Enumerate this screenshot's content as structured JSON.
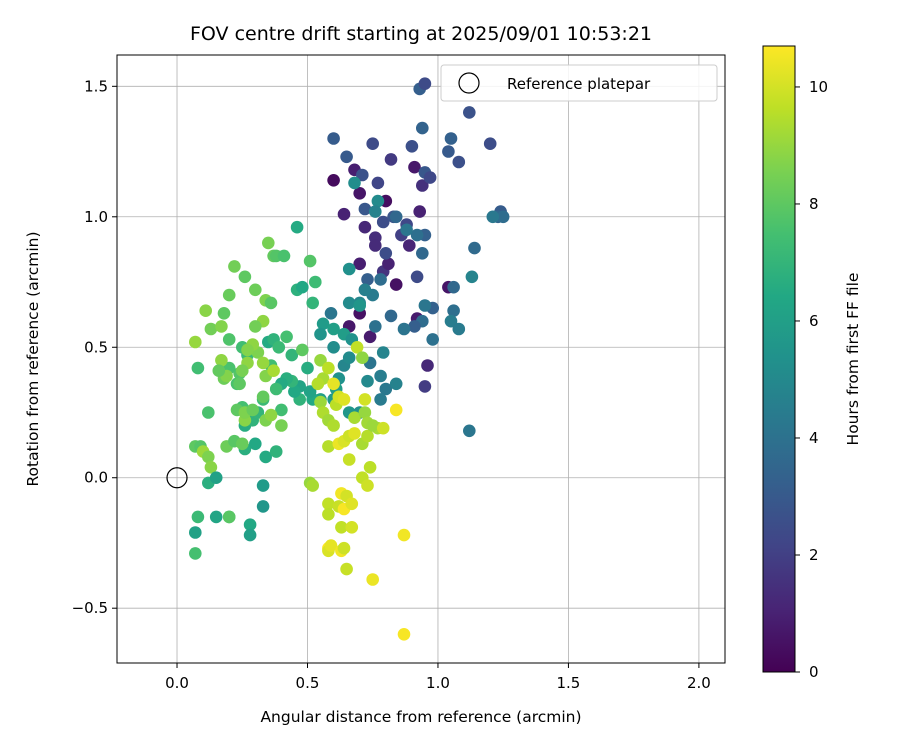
{
  "chart_data": {
    "type": "scatter",
    "title": "FOV centre drift starting at 2025/09/01 10:53:21",
    "xlabel": "Angular distance from reference (arcmin)",
    "ylabel": "Rotation from reference (arcmin)",
    "xlim": [
      -0.23,
      2.1
    ],
    "ylim": [
      -0.71,
      1.62
    ],
    "xticks": [
      0.0,
      0.5,
      1.0,
      1.5,
      2.0
    ],
    "xtick_labels": [
      "0.0",
      "0.5",
      "1.0",
      "1.5",
      "2.0"
    ],
    "yticks": [
      -0.5,
      0.0,
      0.5,
      1.0,
      1.5
    ],
    "ytick_labels": [
      "−0.5",
      "0.0",
      "0.5",
      "1.0",
      "1.5"
    ],
    "grid": true,
    "legend": {
      "position": "top-right",
      "label": "Reference platepar"
    },
    "reference_point": {
      "x": 0.0,
      "y": 0.0
    },
    "colorbar": {
      "label": "Hours from first FF file",
      "colormap": "viridis",
      "min": 0,
      "max": 10.7,
      "ticks": [
        0,
        2,
        4,
        6,
        8,
        10
      ],
      "tick_labels": [
        "0",
        "2",
        "4",
        "6",
        "8",
        "10"
      ]
    },
    "points": [
      [
        0.6,
        1.14,
        0.3
      ],
      [
        0.64,
        1.01,
        1.0
      ],
      [
        0.68,
        1.18,
        0.9
      ],
      [
        0.7,
        1.09,
        0.6
      ],
      [
        0.72,
        0.96,
        1.2
      ],
      [
        0.76,
        0.92,
        1.4
      ],
      [
        0.8,
        1.06,
        0.4
      ],
      [
        0.79,
        0.79,
        1.6
      ],
      [
        0.82,
        1.22,
        1.8
      ],
      [
        0.7,
        0.82,
        0.9
      ],
      [
        0.84,
        0.74,
        0.5
      ],
      [
        0.89,
        0.89,
        1.1
      ],
      [
        0.91,
        1.19,
        0.7
      ],
      [
        0.94,
        1.12,
        1.5
      ],
      [
        0.92,
        0.61,
        0.8
      ],
      [
        0.95,
        0.35,
        1.9
      ],
      [
        0.96,
        0.43,
        1.2
      ],
      [
        0.7,
        0.63,
        0.5
      ],
      [
        0.66,
        0.58,
        0.7
      ],
      [
        1.04,
        0.73,
        0.6
      ],
      [
        0.81,
        0.82,
        1.0
      ],
      [
        0.76,
        0.89,
        1.3
      ],
      [
        0.74,
        0.54,
        0.8
      ],
      [
        0.93,
        1.02,
        1.0
      ],
      [
        0.6,
        1.3,
        3.1
      ],
      [
        0.65,
        1.23,
        3.0
      ],
      [
        0.71,
        1.16,
        2.7
      ],
      [
        0.72,
        1.03,
        2.9
      ],
      [
        0.75,
        1.28,
        2.4
      ],
      [
        0.77,
        1.13,
        2.2
      ],
      [
        0.79,
        0.98,
        2.5
      ],
      [
        0.83,
        1.0,
        2.8
      ],
      [
        0.86,
        0.93,
        2.0
      ],
      [
        0.88,
        0.97,
        2.3
      ],
      [
        0.9,
        1.27,
        2.6
      ],
      [
        0.93,
        1.49,
        3.2
      ],
      [
        0.94,
        1.34,
        3.4
      ],
      [
        0.95,
        1.17,
        2.9
      ],
      [
        0.97,
        1.15,
        2.3
      ],
      [
        0.95,
        1.51,
        2.4
      ],
      [
        1.04,
        1.25,
        3.0
      ],
      [
        1.05,
        1.3,
        3.3
      ],
      [
        1.08,
        1.21,
        2.6
      ],
      [
        1.12,
        1.4,
        2.7
      ],
      [
        1.2,
        1.28,
        2.5
      ],
      [
        1.24,
        1.02,
        3.1
      ],
      [
        1.23,
        1.0,
        3.5
      ],
      [
        1.25,
        1.0,
        3.8
      ],
      [
        1.21,
        1.0,
        4.3
      ],
      [
        1.14,
        0.88,
        3.7
      ],
      [
        1.13,
        0.77,
        4.8
      ],
      [
        1.12,
        0.18,
        4.2
      ],
      [
        0.98,
        0.65,
        3.3
      ],
      [
        0.95,
        0.66,
        4.2
      ],
      [
        1.06,
        0.64,
        3.9
      ],
      [
        1.05,
        0.6,
        4.5
      ],
      [
        1.08,
        0.57,
        4.4
      ],
      [
        1.06,
        0.73,
        3.6
      ],
      [
        0.98,
        0.53,
        4.0
      ],
      [
        0.94,
        0.6,
        3.8
      ],
      [
        0.91,
        0.58,
        3.2
      ],
      [
        0.87,
        0.57,
        4.1
      ],
      [
        0.92,
        0.77,
        2.4
      ],
      [
        0.95,
        0.93,
        3.3
      ],
      [
        0.94,
        0.86,
        3.6
      ],
      [
        0.92,
        0.93,
        3.9
      ],
      [
        0.88,
        0.95,
        4.2
      ],
      [
        0.84,
        1.0,
        3.6
      ],
      [
        0.8,
        0.86,
        2.5
      ],
      [
        0.78,
        0.76,
        3.8
      ],
      [
        0.75,
        0.7,
        4.4
      ],
      [
        0.73,
        0.76,
        3.2
      ],
      [
        0.72,
        0.72,
        4.6
      ],
      [
        0.7,
        0.67,
        4.9
      ],
      [
        0.66,
        0.8,
        5.3
      ],
      [
        0.68,
        1.13,
        5.2
      ],
      [
        0.77,
        1.06,
        5.1
      ],
      [
        0.76,
        1.02,
        4.7
      ],
      [
        0.82,
        0.62,
        3.6
      ],
      [
        0.76,
        0.58,
        4.0
      ],
      [
        0.74,
        0.44,
        4.1
      ],
      [
        0.78,
        0.39,
        4.5
      ],
      [
        0.8,
        0.34,
        4.3
      ],
      [
        0.78,
        0.3,
        4.4
      ],
      [
        0.84,
        0.36,
        4.7
      ],
      [
        0.79,
        0.48,
        4.8
      ],
      [
        0.73,
        0.37,
        5.0
      ],
      [
        0.7,
        0.25,
        5.3
      ],
      [
        0.66,
        0.25,
        5.6
      ],
      [
        0.64,
        0.43,
        4.9
      ],
      [
        0.66,
        0.46,
        5.1
      ],
      [
        0.62,
        0.38,
        5.4
      ],
      [
        0.6,
        0.5,
        5.2
      ],
      [
        0.59,
        0.63,
        4.2
      ],
      [
        0.56,
        0.59,
        5.8
      ],
      [
        0.55,
        0.55,
        5.5
      ],
      [
        0.6,
        0.57,
        6.0
      ],
      [
        0.64,
        0.55,
        5.9
      ],
      [
        0.67,
        0.53,
        5.4
      ],
      [
        0.66,
        0.67,
        5.1
      ],
      [
        0.7,
        0.66,
        5.6
      ],
      [
        0.61,
        0.34,
        5.9
      ],
      [
        0.6,
        0.3,
        5.7
      ],
      [
        0.55,
        0.3,
        6.0
      ],
      [
        0.52,
        0.3,
        6.4
      ],
      [
        0.51,
        0.33,
        6.2
      ],
      [
        0.5,
        0.42,
        6.6
      ],
      [
        0.47,
        0.3,
        6.9
      ],
      [
        0.47,
        0.35,
        6.2
      ],
      [
        0.45,
        0.33,
        6.4
      ],
      [
        0.44,
        0.37,
        7.0
      ],
      [
        0.42,
        0.38,
        6.7
      ],
      [
        0.4,
        0.36,
        6.5
      ],
      [
        0.35,
        0.52,
        6.5
      ],
      [
        0.37,
        0.53,
        6.9
      ],
      [
        0.39,
        0.5,
        7.2
      ],
      [
        0.36,
        0.43,
        7.4
      ],
      [
        0.38,
        0.34,
        7.3
      ],
      [
        0.33,
        0.3,
        7.2
      ],
      [
        0.34,
        0.08,
        6.5
      ],
      [
        0.33,
        -0.03,
        5.8
      ],
      [
        0.33,
        -0.11,
        5.6
      ],
      [
        0.28,
        -0.18,
        6.4
      ],
      [
        0.28,
        -0.22,
        6.0
      ],
      [
        0.2,
        -0.15,
        7.3
      ],
      [
        0.26,
        0.11,
        6.7
      ],
      [
        0.26,
        0.2,
        6.6
      ],
      [
        0.29,
        0.22,
        6.9
      ],
      [
        0.3,
        0.13,
        6.4
      ],
      [
        0.31,
        0.25,
        7.0
      ],
      [
        0.25,
        0.27,
        7.5
      ],
      [
        0.23,
        0.36,
        7.6
      ],
      [
        0.24,
        0.4,
        7.8
      ],
      [
        0.27,
        0.47,
        7.2
      ],
      [
        0.25,
        0.5,
        7.4
      ],
      [
        0.2,
        0.53,
        7.7
      ],
      [
        0.18,
        0.63,
        8.0
      ],
      [
        0.2,
        0.7,
        8.2
      ],
      [
        0.22,
        0.81,
        8.4
      ],
      [
        0.26,
        0.77,
        8.0
      ],
      [
        0.3,
        0.72,
        8.3
      ],
      [
        0.34,
        0.68,
        8.6
      ],
      [
        0.36,
        0.67,
        7.9
      ],
      [
        0.35,
        0.9,
        8.5
      ],
      [
        0.37,
        0.85,
        8.1
      ],
      [
        0.38,
        0.85,
        7.8
      ],
      [
        0.41,
        0.85,
        7.6
      ],
      [
        0.46,
        0.96,
        6.5
      ],
      [
        0.46,
        0.72,
        6.8
      ],
      [
        0.48,
        0.73,
        6.4
      ],
      [
        0.51,
        0.83,
        7.8
      ],
      [
        0.53,
        0.75,
        7.3
      ],
      [
        0.52,
        0.67,
        7.0
      ],
      [
        0.42,
        0.54,
        7.5
      ],
      [
        0.44,
        0.47,
        7.0
      ],
      [
        0.4,
        0.26,
        7.4
      ],
      [
        0.38,
        0.1,
        6.9
      ],
      [
        0.33,
        0.31,
        8.1
      ],
      [
        0.31,
        0.48,
        8.6
      ],
      [
        0.29,
        0.51,
        8.9
      ],
      [
        0.33,
        0.6,
        8.9
      ],
      [
        0.3,
        0.58,
        8.4
      ],
      [
        0.27,
        0.49,
        8.7
      ],
      [
        0.27,
        0.44,
        8.9
      ],
      [
        0.25,
        0.41,
        8.5
      ],
      [
        0.24,
        0.36,
        8.0
      ],
      [
        0.2,
        0.42,
        7.6
      ],
      [
        0.18,
        0.38,
        8.3
      ],
      [
        0.17,
        0.45,
        8.9
      ],
      [
        0.19,
        0.39,
        8.7
      ],
      [
        0.16,
        0.41,
        8.1
      ],
      [
        0.13,
        0.57,
        8.4
      ],
      [
        0.17,
        0.58,
        8.7
      ],
      [
        0.11,
        0.64,
        8.8
      ],
      [
        0.07,
        0.52,
        9.0
      ],
      [
        0.08,
        0.42,
        7.4
      ],
      [
        0.07,
        0.12,
        8.0
      ],
      [
        0.09,
        0.12,
        7.8
      ],
      [
        0.1,
        0.1,
        9.1
      ],
      [
        0.12,
        0.08,
        8.6
      ],
      [
        0.13,
        0.04,
        8.8
      ],
      [
        0.15,
        -0.15,
        6.3
      ],
      [
        0.08,
        -0.15,
        7.2
      ],
      [
        0.07,
        -0.21,
        6.1
      ],
      [
        0.07,
        -0.29,
        7.5
      ],
      [
        0.12,
        -0.02,
        6.7
      ],
      [
        0.15,
        0.0,
        6.1
      ],
      [
        0.2,
        -0.15,
        7.9
      ],
      [
        0.12,
        0.25,
        7.6
      ],
      [
        0.19,
        0.12,
        8.3
      ],
      [
        0.22,
        0.14,
        7.9
      ],
      [
        0.25,
        0.13,
        8.2
      ],
      [
        0.26,
        0.22,
        8.8
      ],
      [
        0.23,
        0.26,
        8.0
      ],
      [
        0.26,
        0.25,
        8.6
      ],
      [
        0.29,
        0.26,
        8.2
      ],
      [
        0.34,
        0.22,
        8.6
      ],
      [
        0.36,
        0.24,
        8.9
      ],
      [
        0.34,
        0.39,
        8.7
      ],
      [
        0.33,
        0.44,
        9.0
      ],
      [
        0.37,
        0.41,
        9.3
      ],
      [
        0.4,
        0.2,
        8.5
      ],
      [
        0.48,
        0.49,
        8.0
      ],
      [
        0.55,
        0.45,
        9.0
      ],
      [
        0.56,
        0.38,
        9.3
      ],
      [
        0.54,
        0.36,
        9.5
      ],
      [
        0.58,
        0.42,
        9.6
      ],
      [
        0.55,
        0.29,
        9.1
      ],
      [
        0.56,
        0.25,
        9.4
      ],
      [
        0.58,
        0.22,
        9.2
      ],
      [
        0.58,
        0.12,
        9.5
      ],
      [
        0.6,
        0.2,
        9.4
      ],
      [
        0.61,
        0.28,
        9.6
      ],
      [
        0.62,
        0.31,
        10.0
      ],
      [
        0.64,
        0.3,
        10.2
      ],
      [
        0.6,
        0.36,
        10.3
      ],
      [
        0.62,
        0.13,
        10.4
      ],
      [
        0.64,
        0.14,
        10.1
      ],
      [
        0.66,
        0.07,
        9.8
      ],
      [
        0.68,
        0.23,
        9.3
      ],
      [
        0.66,
        0.16,
        9.9
      ],
      [
        0.68,
        0.17,
        10.2
      ],
      [
        0.69,
        0.5,
        9.7
      ],
      [
        0.71,
        0.46,
        8.9
      ],
      [
        0.72,
        0.25,
        9.0
      ],
      [
        0.73,
        0.21,
        9.2
      ],
      [
        0.71,
        0.13,
        9.3
      ],
      [
        0.72,
        0.3,
        10.0
      ],
      [
        0.73,
        0.16,
        9.5
      ],
      [
        0.74,
        0.04,
        9.6
      ],
      [
        0.71,
        0.0,
        9.7
      ],
      [
        0.73,
        -0.03,
        9.9
      ],
      [
        0.77,
        0.19,
        9.3
      ],
      [
        0.75,
        0.2,
        9.1
      ],
      [
        0.79,
        0.19,
        9.9
      ],
      [
        0.84,
        0.26,
        10.6
      ],
      [
        0.51,
        -0.02,
        9.0
      ],
      [
        0.52,
        -0.03,
        9.3
      ],
      [
        0.58,
        -0.1,
        9.7
      ],
      [
        0.58,
        -0.14,
        9.6
      ],
      [
        0.62,
        -0.11,
        9.8
      ],
      [
        0.63,
        -0.06,
        10.5
      ],
      [
        0.64,
        -0.12,
        10.6
      ],
      [
        0.65,
        -0.07,
        10.0
      ],
      [
        0.67,
        -0.1,
        10.2
      ],
      [
        0.63,
        -0.19,
        9.7
      ],
      [
        0.67,
        -0.19,
        10.0
      ],
      [
        0.58,
        -0.27,
        10.7
      ],
      [
        0.58,
        -0.28,
        10.1
      ],
      [
        0.59,
        -0.26,
        10.3
      ],
      [
        0.63,
        -0.28,
        10.5
      ],
      [
        0.64,
        -0.27,
        9.9
      ],
      [
        0.65,
        -0.35,
        9.8
      ],
      [
        0.75,
        -0.39,
        10.4
      ],
      [
        0.87,
        -0.22,
        10.5
      ],
      [
        0.87,
        -0.6,
        10.6
      ]
    ]
  }
}
